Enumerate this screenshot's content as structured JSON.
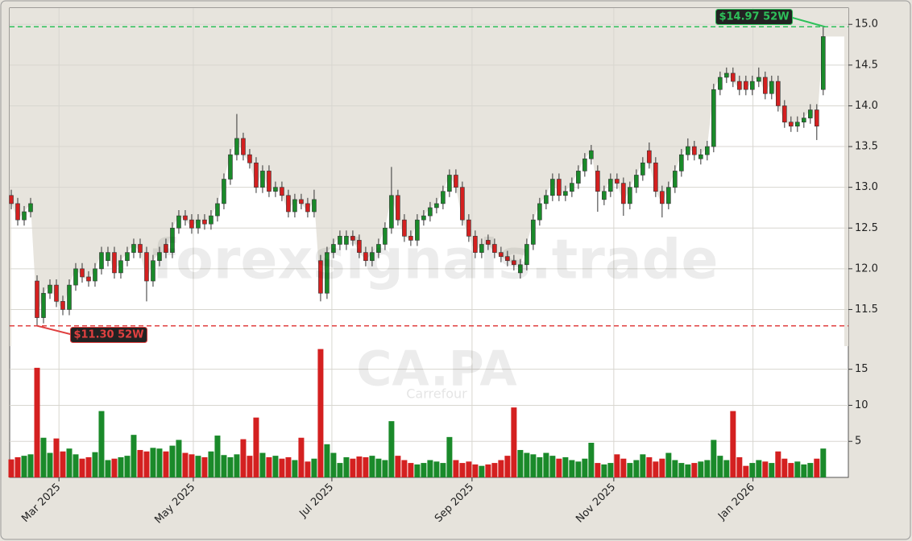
{
  "chart_data": {
    "type": "candlestick",
    "watermark": "forexsignals.trade",
    "symbol": "CA.PA",
    "company": "Carrefour",
    "up_color": "#1a8a2a",
    "down_color": "#d42020",
    "grid": true,
    "open": [
      12.9,
      12.8,
      12.6,
      12.7,
      11.85,
      11.4,
      11.7,
      11.8,
      11.6,
      11.5,
      11.8,
      12.0,
      11.9,
      11.85,
      12.0,
      12.1,
      12.2,
      11.95,
      12.1,
      12.2,
      12.3,
      12.2,
      11.85,
      12.1,
      12.3,
      12.2,
      12.5,
      12.65,
      12.6,
      12.5,
      12.6,
      12.55,
      12.65,
      12.8,
      13.1,
      13.4,
      13.6,
      13.4,
      13.3,
      13.0,
      13.2,
      12.95,
      13.0,
      12.9,
      12.7,
      12.85,
      12.8,
      12.7,
      12.1,
      11.7,
      12.2,
      12.3,
      12.3,
      12.4,
      12.35,
      12.2,
      12.1,
      12.2,
      12.3,
      12.5,
      12.9,
      12.6,
      12.4,
      12.35,
      12.6,
      12.65,
      12.75,
      12.8,
      12.95,
      13.15,
      13.0,
      12.6,
      12.4,
      12.2,
      12.35,
      12.3,
      12.2,
      12.15,
      12.1,
      11.95,
      12.05,
      12.3,
      12.6,
      12.8,
      12.9,
      13.1,
      12.9,
      12.95,
      13.05,
      13.2,
      13.35,
      13.2,
      12.85,
      12.95,
      13.1,
      13.05,
      12.8,
      13.0,
      13.15,
      13.45,
      13.3,
      12.95,
      12.8,
      13.0,
      13.2,
      13.4,
      13.5,
      13.35,
      13.4,
      13.5,
      14.2,
      14.35,
      14.4,
      14.3,
      14.3,
      14.2,
      14.3,
      14.35,
      14.15,
      14.3,
      14.0,
      13.8,
      13.75,
      13.8,
      13.85,
      13.95,
      14.2
    ],
    "high": [
      12.97,
      12.87,
      12.77,
      12.87,
      11.92,
      11.77,
      11.87,
      11.87,
      11.67,
      11.87,
      12.07,
      12.07,
      11.97,
      12.07,
      12.27,
      12.27,
      12.27,
      12.17,
      12.27,
      12.37,
      12.37,
      12.27,
      12.17,
      12.27,
      12.37,
      12.57,
      12.72,
      12.72,
      12.67,
      12.67,
      12.67,
      12.72,
      12.87,
      13.17,
      13.47,
      13.9,
      13.67,
      13.47,
      13.37,
      13.27,
      13.27,
      13.07,
      13.07,
      12.97,
      12.92,
      12.92,
      12.87,
      12.97,
      12.17,
      12.27,
      12.37,
      12.47,
      12.47,
      12.47,
      12.42,
      12.27,
      12.27,
      12.37,
      12.57,
      13.25,
      12.97,
      12.67,
      12.47,
      12.67,
      12.72,
      12.82,
      12.87,
      13.02,
      13.22,
      13.22,
      13.07,
      12.67,
      12.47,
      12.37,
      12.42,
      12.37,
      12.27,
      12.22,
      12.17,
      12.12,
      12.37,
      12.67,
      12.87,
      12.97,
      13.17,
      13.17,
      13.02,
      13.12,
      13.27,
      13.42,
      13.52,
      13.27,
      13.02,
      13.17,
      13.17,
      13.12,
      13.07,
      13.22,
      13.37,
      13.55,
      13.37,
      13.02,
      13.07,
      13.27,
      13.47,
      13.6,
      13.57,
      13.47,
      13.57,
      14.27,
      14.42,
      14.47,
      14.47,
      14.37,
      14.37,
      14.37,
      14.47,
      14.42,
      14.37,
      14.37,
      14.07,
      13.87,
      13.87,
      13.92,
      14.02,
      14.02,
      14.97
    ],
    "low": [
      12.73,
      12.53,
      12.53,
      12.63,
      11.3,
      11.33,
      11.63,
      11.53,
      11.43,
      11.43,
      11.73,
      11.83,
      11.78,
      11.78,
      11.93,
      12.03,
      11.88,
      11.88,
      12.03,
      12.13,
      12.13,
      11.6,
      11.78,
      12.03,
      12.13,
      12.13,
      12.43,
      12.53,
      12.43,
      12.43,
      12.48,
      12.48,
      12.58,
      12.73,
      13.03,
      13.33,
      13.33,
      13.23,
      12.93,
      12.93,
      12.88,
      12.88,
      12.83,
      12.63,
      12.63,
      12.73,
      12.63,
      12.63,
      11.6,
      11.63,
      12.13,
      12.23,
      12.23,
      12.28,
      12.13,
      12.03,
      12.03,
      12.13,
      12.23,
      12.43,
      12.53,
      12.33,
      12.28,
      12.28,
      12.53,
      12.58,
      12.68,
      12.73,
      12.88,
      12.93,
      12.53,
      12.33,
      12.13,
      12.13,
      12.23,
      12.13,
      12.08,
      12.03,
      11.98,
      11.88,
      11.98,
      12.23,
      12.53,
      12.73,
      12.83,
      12.83,
      12.83,
      12.88,
      12.98,
      13.13,
      13.28,
      12.7,
      12.78,
      12.88,
      12.98,
      12.65,
      12.73,
      12.93,
      13.08,
      13.23,
      12.88,
      12.63,
      12.73,
      12.93,
      13.13,
      13.33,
      13.33,
      13.28,
      13.33,
      13.43,
      14.13,
      14.28,
      14.23,
      14.13,
      14.13,
      14.13,
      14.23,
      14.08,
      14.08,
      13.93,
      13.73,
      13.68,
      13.68,
      13.73,
      13.78,
      13.58,
      14.13
    ],
    "close": [
      12.8,
      12.6,
      12.7,
      12.8,
      11.4,
      11.7,
      11.8,
      11.6,
      11.5,
      11.8,
      12.0,
      11.9,
      11.85,
      12.0,
      12.2,
      12.2,
      11.95,
      12.1,
      12.2,
      12.3,
      12.2,
      11.85,
      12.1,
      12.2,
      12.2,
      12.5,
      12.65,
      12.6,
      12.5,
      12.6,
      12.55,
      12.65,
      12.8,
      13.1,
      13.4,
      13.6,
      13.4,
      13.3,
      13.0,
      13.2,
      12.95,
      13.0,
      12.9,
      12.7,
      12.85,
      12.8,
      12.7,
      12.85,
      11.7,
      12.2,
      12.3,
      12.4,
      12.4,
      12.35,
      12.2,
      12.1,
      12.2,
      12.3,
      12.5,
      12.9,
      12.6,
      12.4,
      12.35,
      12.6,
      12.65,
      12.75,
      12.8,
      12.95,
      13.15,
      13.0,
      12.6,
      12.4,
      12.2,
      12.3,
      12.3,
      12.2,
      12.15,
      12.1,
      12.05,
      12.05,
      12.3,
      12.6,
      12.8,
      12.9,
      13.1,
      12.9,
      12.95,
      13.05,
      13.2,
      13.35,
      13.45,
      12.95,
      12.95,
      13.1,
      13.05,
      12.8,
      13.0,
      13.15,
      13.3,
      13.3,
      12.95,
      12.8,
      13.0,
      13.2,
      13.4,
      13.5,
      13.4,
      13.4,
      13.5,
      14.2,
      14.35,
      14.4,
      14.3,
      14.2,
      14.2,
      14.3,
      14.35,
      14.15,
      14.3,
      14.0,
      13.8,
      13.75,
      13.8,
      13.85,
      13.95,
      13.75,
      14.85
    ],
    "volume": [
      2.5,
      2.8,
      3.0,
      3.2,
      15.2,
      5.5,
      3.4,
      5.4,
      3.6,
      4.0,
      3.2,
      2.6,
      2.8,
      3.5,
      9.2,
      2.4,
      2.6,
      2.8,
      3.0,
      5.9,
      3.8,
      3.6,
      4.1,
      4.0,
      3.6,
      4.4,
      5.2,
      3.4,
      3.2,
      3.0,
      2.8,
      3.6,
      5.8,
      3.1,
      2.8,
      3.2,
      5.3,
      3.0,
      8.3,
      3.4,
      2.8,
      3.0,
      2.6,
      2.8,
      2.4,
      5.5,
      2.2,
      2.6,
      17.8,
      4.6,
      3.4,
      2.0,
      2.8,
      2.6,
      2.9,
      2.8,
      3.0,
      2.6,
      2.4,
      7.8,
      3.0,
      2.4,
      2.0,
      1.8,
      2.0,
      2.4,
      2.2,
      2.0,
      5.6,
      2.4,
      2.0,
      2.2,
      1.8,
      1.6,
      1.8,
      2.0,
      2.4,
      3.0,
      9.7,
      3.8,
      3.4,
      3.2,
      2.8,
      3.4,
      3.0,
      2.6,
      2.8,
      2.4,
      2.2,
      2.6,
      4.8,
      2.0,
      1.8,
      2.0,
      3.2,
      2.6,
      2.0,
      2.4,
      3.2,
      2.8,
      2.2,
      2.6,
      3.4,
      2.4,
      2.0,
      1.8,
      2.0,
      2.2,
      2.4,
      5.2,
      3.0,
      2.4,
      9.2,
      2.8,
      1.6,
      2.0,
      2.4,
      2.2,
      2.0,
      3.6,
      2.6,
      2.0,
      2.2,
      1.8,
      2.0,
      2.6,
      4.0
    ],
    "xlim": [
      -0.25,
      129.9
    ],
    "xticks": [
      {
        "value": 7.4,
        "label": "Mar 2025"
      },
      {
        "value": 28.25,
        "label": "May 2025"
      },
      {
        "value": 49.75,
        "label": "Jul 2025"
      },
      {
        "value": 71.5,
        "label": "Sep 2025"
      },
      {
        "value": 93.5,
        "label": "Nov 2025"
      },
      {
        "value": 115.1,
        "label": "Jan 2026"
      }
    ],
    "ylim": [
      11.05,
      15.2
    ],
    "yticks": [
      11.5,
      {
        "value": 12.0,
        "label": "12.0"
      },
      12.5,
      {
        "value": 13.0,
        "label": "13.0"
      },
      13.5,
      {
        "value": 14.0,
        "label": "14.0"
      },
      14.5,
      {
        "value": 15.0,
        "label": "15.0"
      }
    ],
    "volume_ylim": [
      0,
      18.2
    ],
    "volume_yticks": [
      5,
      10,
      15
    ],
    "high_line": {
      "value": 14.97,
      "label": "$14.97 52W",
      "color": "#2ec05a"
    },
    "low_line": {
      "value": 11.3,
      "label": "$11.30 52W",
      "color": "#e04040"
    }
  }
}
